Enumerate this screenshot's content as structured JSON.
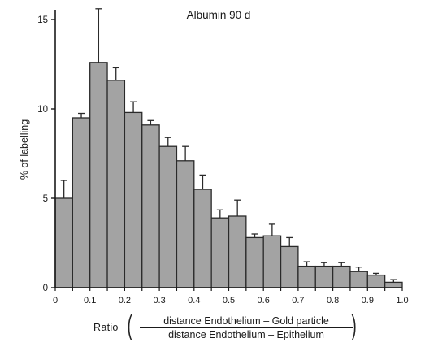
{
  "chart_data": {
    "type": "bar",
    "title": "Albumin 90 d",
    "ylabel": "% of labelling",
    "xlabel": {
      "prefix": "Ratio",
      "numerator": "distance Endothelium – Gold particle",
      "denominator": "distance Endothelium – Epithelium"
    },
    "xlim": [
      0,
      1.0
    ],
    "ylim": [
      0,
      15
    ],
    "bin_width": 0.05,
    "x_ticks": [
      0,
      0.1,
      0.2,
      0.3,
      0.4,
      0.5,
      0.6,
      0.7,
      0.8,
      0.9,
      1.0
    ],
    "x_tick_labels": [
      "0",
      "0.1",
      "0.2",
      "0.3",
      "0.4",
      "0.5",
      "0.6",
      "0.7",
      "0.8",
      "0.9",
      "1.0"
    ],
    "y_ticks": [
      0,
      5,
      10,
      15
    ],
    "y_tick_labels": [
      "0",
      "5",
      "10",
      "15"
    ],
    "bins": [
      {
        "x0": 0.0,
        "x1": 0.05,
        "value": 5.0,
        "error": 1.0
      },
      {
        "x0": 0.05,
        "x1": 0.1,
        "value": 9.5,
        "error": 0.25
      },
      {
        "x0": 0.1,
        "x1": 0.15,
        "value": 12.6,
        "error": 3.0
      },
      {
        "x0": 0.15,
        "x1": 0.2,
        "value": 11.6,
        "error": 0.7
      },
      {
        "x0": 0.2,
        "x1": 0.25,
        "value": 9.8,
        "error": 0.6
      },
      {
        "x0": 0.25,
        "x1": 0.3,
        "value": 9.1,
        "error": 0.25
      },
      {
        "x0": 0.3,
        "x1": 0.35,
        "value": 7.9,
        "error": 0.5
      },
      {
        "x0": 0.35,
        "x1": 0.4,
        "value": 7.1,
        "error": 0.8
      },
      {
        "x0": 0.4,
        "x1": 0.45,
        "value": 5.5,
        "error": 0.8
      },
      {
        "x0": 0.45,
        "x1": 0.5,
        "value": 3.9,
        "error": 0.45
      },
      {
        "x0": 0.5,
        "x1": 0.55,
        "value": 4.0,
        "error": 0.9
      },
      {
        "x0": 0.55,
        "x1": 0.6,
        "value": 2.8,
        "error": 0.2
      },
      {
        "x0": 0.6,
        "x1": 0.65,
        "value": 2.9,
        "error": 0.65
      },
      {
        "x0": 0.65,
        "x1": 0.7,
        "value": 2.3,
        "error": 0.5
      },
      {
        "x0": 0.7,
        "x1": 0.75,
        "value": 1.2,
        "error": 0.25
      },
      {
        "x0": 0.75,
        "x1": 0.8,
        "value": 1.2,
        "error": 0.2
      },
      {
        "x0": 0.8,
        "x1": 0.85,
        "value": 1.2,
        "error": 0.2
      },
      {
        "x0": 0.85,
        "x1": 0.9,
        "value": 0.9,
        "error": 0.25
      },
      {
        "x0": 0.9,
        "x1": 0.95,
        "value": 0.7,
        "error": 0.1
      },
      {
        "x0": 0.95,
        "x1": 1.0,
        "value": 0.3,
        "error": 0.15
      }
    ],
    "colors": {
      "bar_fill": "#a3a3a3",
      "bar_stroke": "#2a2a2a",
      "axis": "#1a1a1a"
    },
    "grid": false,
    "legend": "none"
  }
}
